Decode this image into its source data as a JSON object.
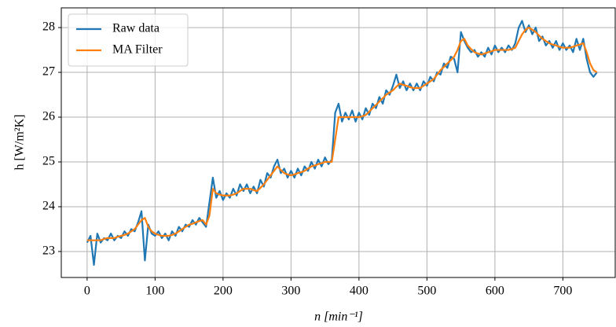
{
  "chart_data": {
    "type": "line",
    "xlabel": "n [min⁻¹]",
    "ylabel": "h [W/m²K]",
    "x": [
      0,
      5,
      10,
      15,
      20,
      25,
      30,
      35,
      40,
      45,
      50,
      55,
      60,
      65,
      70,
      75,
      80,
      85,
      90,
      95,
      100,
      105,
      110,
      115,
      120,
      125,
      130,
      135,
      140,
      145,
      150,
      155,
      160,
      165,
      170,
      175,
      180,
      185,
      190,
      195,
      200,
      205,
      210,
      215,
      220,
      225,
      230,
      235,
      240,
      245,
      250,
      255,
      260,
      265,
      270,
      275,
      280,
      285,
      290,
      295,
      300,
      305,
      310,
      315,
      320,
      325,
      330,
      335,
      340,
      345,
      350,
      355,
      360,
      365,
      370,
      375,
      380,
      385,
      390,
      395,
      400,
      405,
      410,
      415,
      420,
      425,
      430,
      435,
      440,
      445,
      450,
      455,
      460,
      465,
      470,
      475,
      480,
      485,
      490,
      495,
      500,
      505,
      510,
      515,
      520,
      525,
      530,
      535,
      540,
      545,
      550,
      555,
      560,
      565,
      570,
      575,
      580,
      585,
      590,
      595,
      600,
      605,
      610,
      615,
      620,
      625,
      630,
      635,
      640,
      645,
      650,
      655,
      660,
      665,
      670,
      675,
      680,
      685,
      690,
      695,
      700,
      705,
      710,
      715,
      720,
      725,
      730,
      735,
      740,
      745,
      750
    ],
    "series": [
      {
        "name": "Raw data",
        "color": "#1f77b4",
        "values": [
          23.2,
          23.35,
          22.7,
          23.4,
          23.2,
          23.3,
          23.25,
          23.4,
          23.25,
          23.35,
          23.3,
          23.45,
          23.35,
          23.5,
          23.45,
          23.65,
          23.9,
          22.8,
          23.6,
          23.4,
          23.35,
          23.45,
          23.3,
          23.4,
          23.25,
          23.45,
          23.35,
          23.55,
          23.45,
          23.6,
          23.55,
          23.7,
          23.6,
          23.75,
          23.65,
          23.55,
          24.1,
          24.65,
          24.2,
          24.35,
          24.15,
          24.3,
          24.2,
          24.4,
          24.25,
          24.5,
          24.35,
          24.5,
          24.3,
          24.45,
          24.3,
          24.6,
          24.45,
          24.75,
          24.65,
          24.9,
          25.05,
          24.75,
          24.85,
          24.65,
          24.8,
          24.65,
          24.85,
          24.7,
          24.9,
          24.8,
          25.0,
          24.85,
          25.05,
          24.9,
          25.1,
          24.95,
          25.05,
          26.1,
          26.3,
          25.9,
          26.1,
          25.95,
          26.15,
          25.9,
          26.1,
          25.95,
          26.2,
          26.05,
          26.3,
          26.2,
          26.45,
          26.3,
          26.6,
          26.5,
          26.7,
          26.95,
          26.65,
          26.8,
          26.6,
          26.75,
          26.6,
          26.75,
          26.6,
          26.8,
          26.7,
          26.9,
          26.8,
          27.0,
          26.95,
          27.2,
          27.1,
          27.35,
          27.3,
          27.0,
          27.9,
          27.7,
          27.55,
          27.45,
          27.5,
          27.35,
          27.45,
          27.35,
          27.55,
          27.4,
          27.6,
          27.45,
          27.55,
          27.45,
          27.6,
          27.5,
          27.65,
          28.0,
          28.15,
          27.9,
          28.05,
          27.85,
          28.0,
          27.7,
          27.8,
          27.6,
          27.7,
          27.55,
          27.7,
          27.5,
          27.65,
          27.5,
          27.6,
          27.45,
          27.75,
          27.5,
          27.75,
          27.3,
          27.0,
          26.9,
          27.0
        ]
      },
      {
        "name": "MA Filter",
        "color": "#ff7f0e",
        "values": [
          23.25,
          23.25,
          23.25,
          23.25,
          23.25,
          23.28,
          23.3,
          23.3,
          23.3,
          23.33,
          23.35,
          23.37,
          23.4,
          23.45,
          23.5,
          23.6,
          23.7,
          23.75,
          23.55,
          23.45,
          23.4,
          23.37,
          23.35,
          23.35,
          23.35,
          23.37,
          23.4,
          23.45,
          23.5,
          23.55,
          23.6,
          23.62,
          23.65,
          23.68,
          23.7,
          23.6,
          23.8,
          24.4,
          24.3,
          24.27,
          24.25,
          24.25,
          24.25,
          24.27,
          24.3,
          24.35,
          24.4,
          24.4,
          24.4,
          24.37,
          24.35,
          24.42,
          24.5,
          24.6,
          24.7,
          24.8,
          24.9,
          24.82,
          24.75,
          24.72,
          24.7,
          24.72,
          24.75,
          24.77,
          24.8,
          24.85,
          24.9,
          24.92,
          24.95,
          24.97,
          25.0,
          25.0,
          25.0,
          25.5,
          26.0,
          26.0,
          26.0,
          26.0,
          26.0,
          26.0,
          26.0,
          26.02,
          26.05,
          26.12,
          26.2,
          26.27,
          26.35,
          26.42,
          26.5,
          26.55,
          26.6,
          26.68,
          26.75,
          26.72,
          26.7,
          26.67,
          26.65,
          26.65,
          26.65,
          26.7,
          26.75,
          26.8,
          26.85,
          26.95,
          27.05,
          27.12,
          27.2,
          27.27,
          27.35,
          27.5,
          27.7,
          27.75,
          27.6,
          27.52,
          27.45,
          27.42,
          27.4,
          27.42,
          27.45,
          27.47,
          27.5,
          27.5,
          27.5,
          27.5,
          27.5,
          27.52,
          27.55,
          27.7,
          27.85,
          27.95,
          28.0,
          27.95,
          27.9,
          27.82,
          27.75,
          27.7,
          27.65,
          27.62,
          27.6,
          27.57,
          27.55,
          27.55,
          27.55,
          27.57,
          27.6,
          27.62,
          27.65,
          27.45,
          27.2,
          27.05,
          27.0
        ]
      }
    ],
    "xlim": [
      -38,
      777
    ],
    "ylim": [
      22.42,
      28.44
    ],
    "xticks": [
      0,
      100,
      200,
      300,
      400,
      500,
      600,
      700
    ],
    "yticks": [
      23,
      24,
      25,
      26,
      27,
      28
    ],
    "grid": true,
    "legend": "upper-left"
  }
}
